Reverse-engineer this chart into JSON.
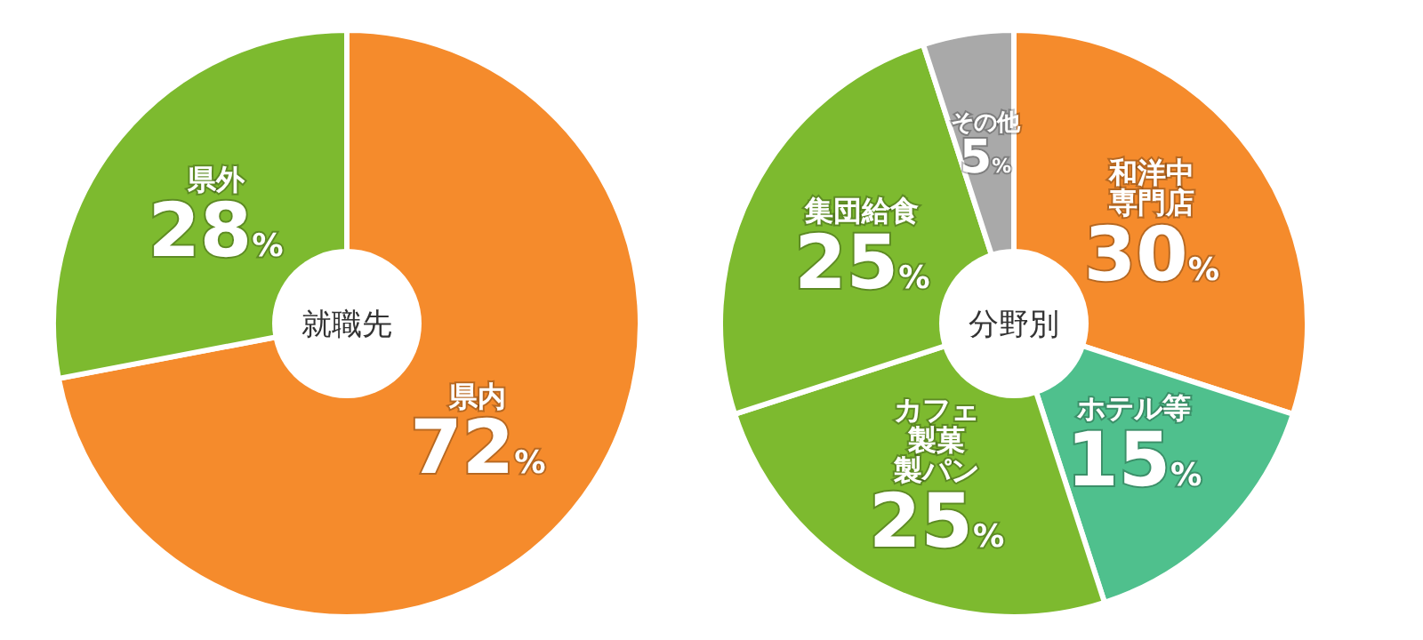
{
  "chart_data": [
    {
      "type": "donut",
      "annotations": [
        "就職先"
      ],
      "categories": [
        "県内",
        "県外"
      ],
      "values": [
        72,
        28
      ],
      "value_labels": [
        "72%",
        "28%"
      ],
      "colors": [
        "#f58b2c",
        "#7dba2f"
      ]
    },
    {
      "type": "donut",
      "annotations": [
        "分野別"
      ],
      "categories": [
        "和洋中専門店",
        "ホテル等",
        "カフェ製菓製パン",
        "集団給食",
        "その他"
      ],
      "values": [
        30,
        15,
        25,
        25,
        5
      ],
      "value_labels": [
        "30%",
        "15%",
        "25%",
        "25%",
        "5%"
      ],
      "colors": [
        "#f58b2c",
        "#4fc08d",
        "#7dba2f",
        "#7dba2f",
        "#a9a9a9"
      ]
    }
  ]
}
